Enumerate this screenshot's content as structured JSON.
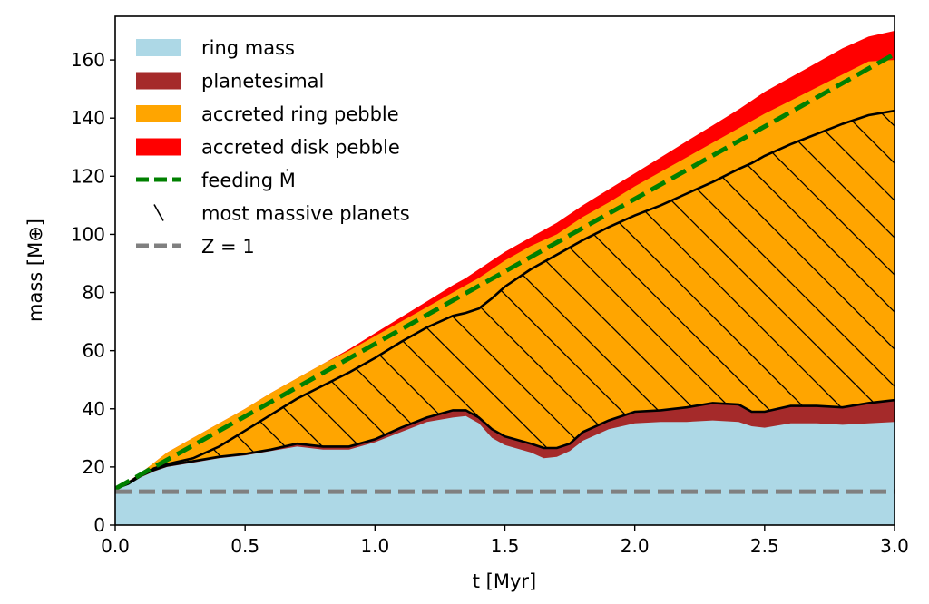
{
  "chart_data": {
    "type": "area",
    "xlabel": "t [Myr]",
    "ylabel": "mass [M⊕]",
    "xlim": [
      0.0,
      3.0
    ],
    "ylim": [
      0,
      175
    ],
    "xticks": [
      0.0,
      0.5,
      1.0,
      1.5,
      2.0,
      2.5,
      3.0
    ],
    "xtick_labels": [
      "0.0",
      "0.5",
      "1.0",
      "1.5",
      "2.0",
      "2.5",
      "3.0"
    ],
    "yticks": [
      0,
      20,
      40,
      60,
      80,
      100,
      120,
      140,
      160
    ],
    "ytick_labels": [
      "0",
      "20",
      "40",
      "60",
      "80",
      "100",
      "120",
      "140",
      "160"
    ],
    "grid": false,
    "legend_position": "top-left",
    "legend": [
      {
        "label": "ring mass",
        "kind": "patch",
        "color": "#add8e6"
      },
      {
        "label": "planetesimal",
        "kind": "patch",
        "color": "#a52a2a"
      },
      {
        "label": "accreted ring pebble",
        "kind": "patch",
        "color": "#ffa500"
      },
      {
        "label": "accreted disk pebble",
        "kind": "patch",
        "color": "#ff0000"
      },
      {
        "label": "feeding Ṁ",
        "kind": "dashed-line",
        "color": "#008000"
      },
      {
        "label": "most massive planets",
        "kind": "hatch",
        "color": "#000000"
      },
      {
        "label": "Z = 1",
        "kind": "dashed-line",
        "color": "#808080"
      }
    ],
    "x": [
      0.0,
      0.05,
      0.1,
      0.15,
      0.2,
      0.3,
      0.4,
      0.5,
      0.6,
      0.7,
      0.8,
      0.9,
      1.0,
      1.1,
      1.2,
      1.3,
      1.35,
      1.4,
      1.45,
      1.5,
      1.6,
      1.65,
      1.7,
      1.75,
      1.8,
      1.9,
      2.0,
      2.1,
      2.2,
      2.3,
      2.4,
      2.45,
      2.5,
      2.6,
      2.7,
      2.8,
      2.9,
      3.0
    ],
    "series": [
      {
        "name": "ring mass",
        "color": "#add8e6",
        "values": [
          12.5,
          14.0,
          16.5,
          18.5,
          20.0,
          21.5,
          23.0,
          24.0,
          25.5,
          27.0,
          26.0,
          26.0,
          28.5,
          32.0,
          35.5,
          37.0,
          37.5,
          35.0,
          30.0,
          27.5,
          25.0,
          23.0,
          23.5,
          25.5,
          29.0,
          33.0,
          35.0,
          35.5,
          35.5,
          36.0,
          35.5,
          34.0,
          33.5,
          35.0,
          35.0,
          34.5,
          35.0,
          35.5
        ]
      },
      {
        "name": "planetesimal",
        "color": "#a52a2a",
        "values": [
          12.5,
          14.2,
          17.0,
          19.0,
          20.5,
          22.0,
          23.5,
          24.5,
          26.0,
          28.0,
          27.0,
          27.0,
          29.5,
          33.5,
          37.0,
          39.5,
          39.5,
          37.0,
          33.0,
          30.5,
          28.0,
          26.5,
          26.5,
          28.0,
          32.0,
          36.0,
          39.0,
          39.5,
          40.5,
          42.0,
          41.5,
          39.0,
          39.0,
          41.0,
          41.0,
          40.5,
          42.0,
          43.0
        ]
      },
      {
        "name": "accreted ring pebble",
        "color": "#ffa500",
        "values": [
          12.5,
          15.0,
          18.0,
          21.5,
          25.0,
          30.0,
          35.0,
          40.0,
          45.5,
          50.5,
          55.5,
          60.0,
          65.0,
          70.0,
          75.0,
          80.0,
          82.5,
          85.0,
          88.0,
          91.0,
          96.0,
          98.0,
          100.0,
          103.0,
          106.0,
          111.0,
          116.5,
          121.5,
          126.5,
          131.5,
          136.5,
          139.0,
          141.5,
          146.0,
          150.5,
          155.0,
          159.5,
          160.0
        ]
      },
      {
        "name": "accreted disk pebble",
        "color": "#ff0000",
        "values": [
          12.5,
          15.0,
          18.0,
          21.5,
          25.0,
          30.0,
          35.0,
          40.0,
          45.5,
          50.5,
          55.5,
          60.5,
          66.0,
          71.5,
          77.0,
          82.5,
          85.0,
          88.0,
          91.0,
          94.0,
          99.0,
          101.5,
          104.0,
          107.0,
          110.0,
          115.5,
          121.0,
          126.5,
          132.0,
          137.5,
          143.0,
          146.0,
          149.0,
          154.0,
          159.0,
          164.0,
          168.0,
          170.0
        ]
      },
      {
        "name": "most massive planets",
        "color": "#000000",
        "values": [
          12.5,
          14.5,
          17.5,
          19.5,
          21.0,
          23.0,
          27.0,
          32.5,
          38.0,
          43.5,
          48.0,
          52.5,
          57.5,
          63.0,
          68.0,
          72.0,
          73.0,
          74.5,
          78.0,
          82.0,
          88.0,
          90.5,
          93.0,
          95.5,
          98.0,
          102.5,
          106.5,
          110.0,
          114.0,
          118.0,
          122.5,
          124.5,
          127.0,
          131.0,
          134.5,
          138.0,
          141.0,
          142.5
        ]
      }
    ],
    "feeding_rate": {
      "name": "feeding Ṁ",
      "color": "#008000",
      "style": "dashed",
      "x": [
        0.0,
        3.0
      ],
      "values": [
        12.5,
        162.0
      ]
    },
    "z_equals_1": {
      "name": "Z = 1",
      "color": "#808080",
      "style": "dashed",
      "x": [
        0.0,
        3.0
      ],
      "values": [
        11.5,
        11.5
      ]
    }
  }
}
